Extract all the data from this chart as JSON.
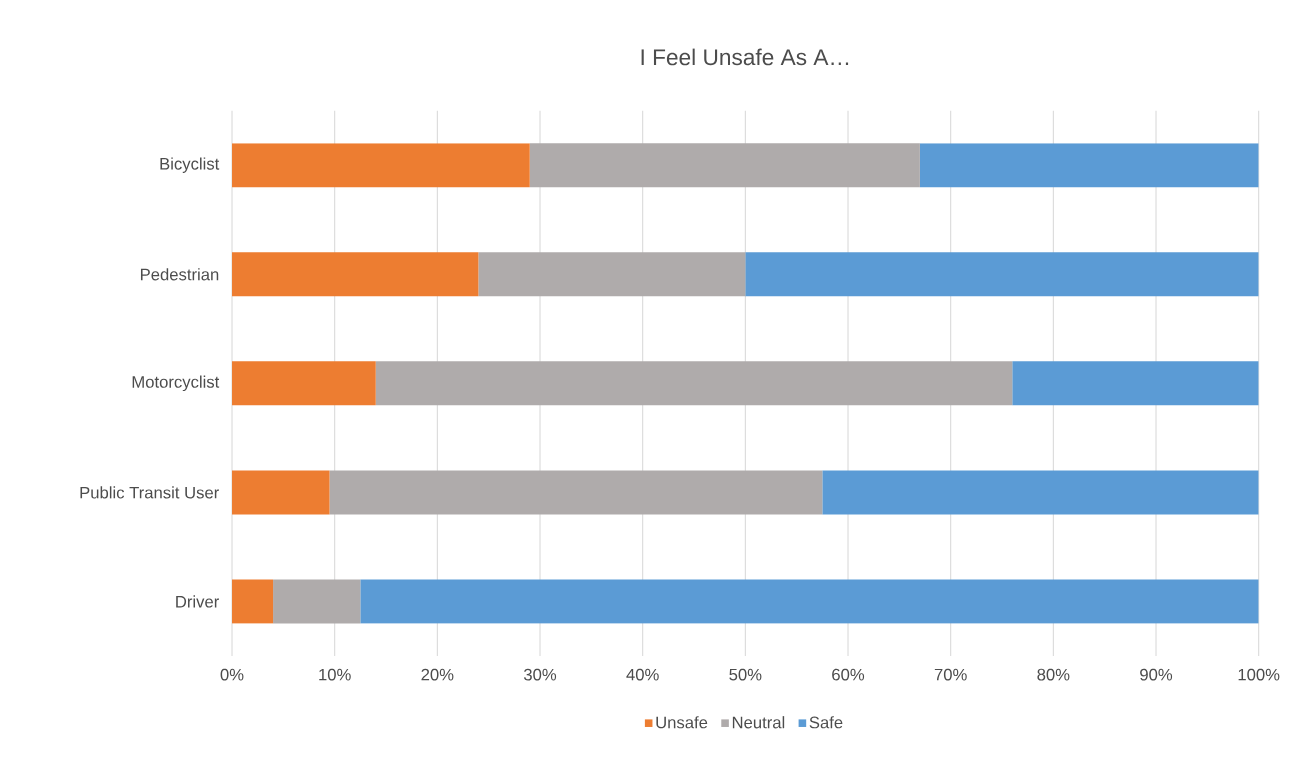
{
  "chart_data": {
    "type": "bar",
    "orientation": "horizontal",
    "stacked": true,
    "title": "I Feel Unsafe As A…",
    "categories": [
      "Bicyclist",
      "Pedestrian",
      "Motorcyclist",
      "Public Transit User",
      "Driver"
    ],
    "series": [
      {
        "name": "Unsafe",
        "color": "#ed7d31",
        "values": [
          29,
          24,
          14,
          9.5,
          4
        ]
      },
      {
        "name": "Neutral",
        "color": "#afabab",
        "values": [
          38,
          26,
          62,
          48,
          8.5
        ]
      },
      {
        "name": "Safe",
        "color": "#5b9bd5",
        "values": [
          33,
          50,
          24,
          42.5,
          87.5
        ]
      }
    ],
    "xlim": [
      0,
      100
    ],
    "xticks": [
      {
        "value": 0,
        "label": "0%"
      },
      {
        "value": 10,
        "label": "10%"
      },
      {
        "value": 20,
        "label": "20%"
      },
      {
        "value": 30,
        "label": "30%"
      },
      {
        "value": 40,
        "label": "40%"
      },
      {
        "value": 50,
        "label": "50%"
      },
      {
        "value": 60,
        "label": "60%"
      },
      {
        "value": 70,
        "label": "70%"
      },
      {
        "value": 80,
        "label": "80%"
      },
      {
        "value": 90,
        "label": "90%"
      },
      {
        "value": 100,
        "label": "100%"
      }
    ],
    "grid": "x",
    "legend": "bottom"
  }
}
